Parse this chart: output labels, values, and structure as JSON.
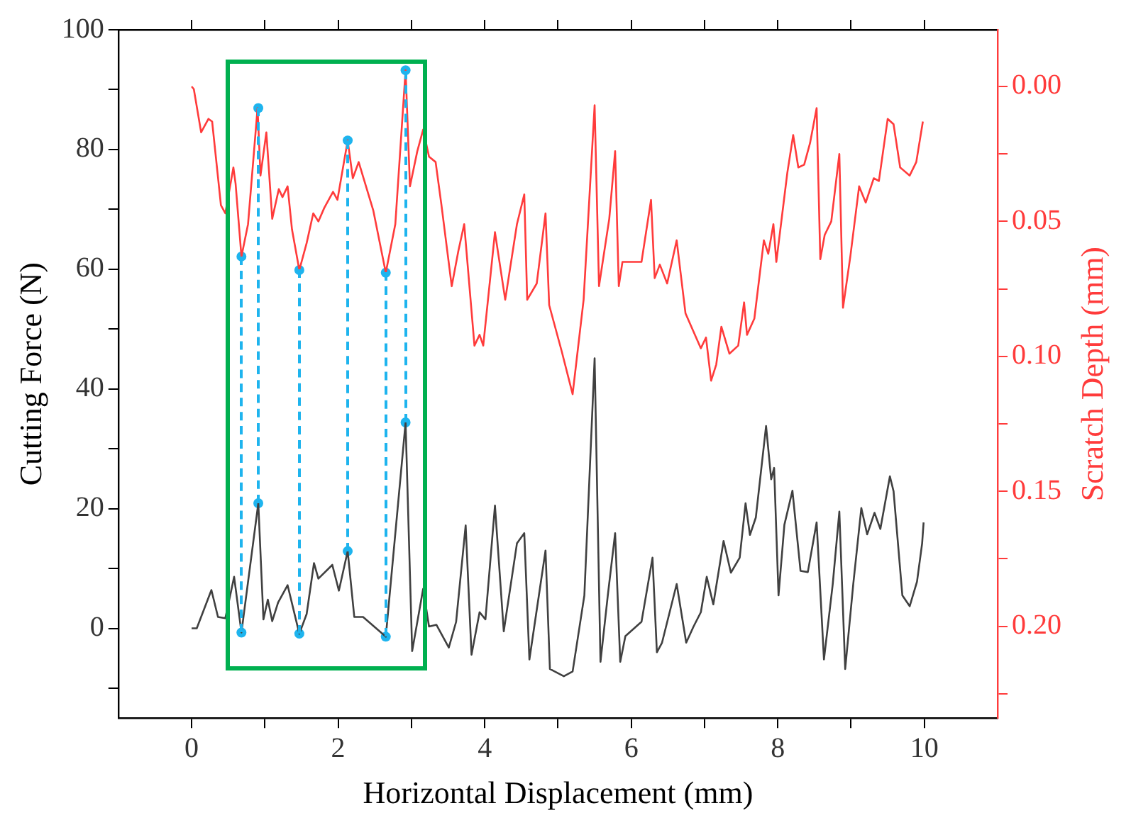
{
  "chart_data": {
    "type": "line",
    "xlabel": "Horizontal Displacement (mm)",
    "ylabel": "Cutting Force (N)",
    "y2label": "Scratch Depth (mm)",
    "xlim": [
      -1,
      11
    ],
    "xticks": [
      0,
      {
        "value": 1,
        "label": null
      },
      2,
      {
        "value": 3,
        "label": null
      },
      4,
      {
        "value": 5,
        "label": null
      },
      6,
      {
        "value": 7,
        "label": null
      },
      8,
      {
        "value": 9,
        "label": null
      },
      10
    ],
    "ylim": [
      -15,
      100
    ],
    "yticks": [
      {
        "value": -10,
        "label": null
      },
      0,
      {
        "value": 10,
        "label": null
      },
      20,
      {
        "value": 30,
        "label": null
      },
      40,
      {
        "value": 50,
        "label": null
      },
      60,
      {
        "value": 70,
        "label": null
      },
      80,
      {
        "value": 90,
        "label": null
      },
      100
    ],
    "y2lim": [
      0.234,
      -0.021
    ],
    "y2ticks": [
      {
        "value": 0,
        "label": "0.00"
      },
      {
        "value": 0.025,
        "label": null
      },
      {
        "value": 0.05,
        "label": "0.05"
      },
      {
        "value": 0.075,
        "label": null
      },
      {
        "value": 0.1,
        "label": "0.10"
      },
      {
        "value": 0.125,
        "label": null
      },
      {
        "value": 0.15,
        "label": "0.15"
      },
      {
        "value": 0.175,
        "label": null
      },
      {
        "value": 0.2,
        "label": "0.20"
      },
      {
        "value": 0.225,
        "label": null
      }
    ],
    "grid": false,
    "legend": false,
    "series": [
      {
        "color": "#404040",
        "marker": "none",
        "x": [
          0,
          0.07,
          0.27,
          0.36,
          0.46,
          0.58,
          0.68,
          0.91,
          0.98,
          1.04,
          1.1,
          1.18,
          1.31,
          1.47,
          1.57,
          1.67,
          1.73,
          1.92,
          2.01,
          2.13,
          2.22,
          2.34,
          2.65,
          2.92,
          3.01,
          3.16,
          3.24,
          3.34,
          3.51,
          3.61,
          3.74,
          3.82,
          3.93,
          4.01,
          4.14,
          4.26,
          4.44,
          4.54,
          4.61,
          4.83,
          4.89,
          5.08,
          5.2,
          5.36,
          5.5,
          5.58,
          5.68,
          5.78,
          5.85,
          5.92,
          6.14,
          6.29,
          6.35,
          6.42,
          6.62,
          6.75,
          6.85,
          6.95,
          7.03,
          7.12,
          7.26,
          7.36,
          7.48,
          7.56,
          7.62,
          7.7,
          7.84,
          7.91,
          7.95,
          8.01,
          8.09,
          8.2,
          8.31,
          8.41,
          8.53,
          8.63,
          8.75,
          8.84,
          8.92,
          9.03,
          9.14,
          9.22,
          9.32,
          9.4,
          9.53,
          9.58,
          9.7,
          9.8,
          9.9,
          9.97,
          9.99
        ],
        "values": [
          0,
          0,
          6.4,
          1.9,
          1.7,
          8.6,
          -0.7,
          20.9,
          1.5,
          4.8,
          1.2,
          4.3,
          7.2,
          -0.9,
          2.4,
          10.9,
          8.3,
          10.6,
          6.3,
          12.9,
          1.9,
          1.9,
          -1.4,
          34.4,
          -3.8,
          6.6,
          0.3,
          0.6,
          -3.2,
          1.1,
          17.2,
          -4.4,
          2.7,
          1.5,
          20.5,
          -0.5,
          14.2,
          15.9,
          -5.2,
          13,
          -6.8,
          -8,
          -7.2,
          5.5,
          45.1,
          -5.6,
          5.5,
          15.9,
          -5.6,
          -1.3,
          1.1,
          11.8,
          -4,
          -2.4,
          7.4,
          -2.4,
          0.3,
          2.7,
          8.6,
          4,
          14.6,
          9.3,
          11.8,
          20.9,
          15.6,
          18.5,
          33.8,
          24.9,
          26.8,
          5.5,
          17.3,
          23,
          9.6,
          9.4,
          17.7,
          -5.2,
          7.4,
          19.5,
          -6.8,
          7.4,
          20.1,
          15.7,
          19.3,
          16.6,
          25.4,
          22.9,
          5.5,
          3.7,
          7.8,
          14.2,
          17.7
        ]
      },
      {
        "axis": "y2",
        "color": "#ff3b3b",
        "marker": "none",
        "x": [
          0,
          0.03,
          0.13,
          0.23,
          0.28,
          0.4,
          0.46,
          0.57,
          0.6,
          0.68,
          0.77,
          0.9,
          0.94,
          1.02,
          1.1,
          1.19,
          1.24,
          1.31,
          1.37,
          1.47,
          1.57,
          1.66,
          1.73,
          1.81,
          1.93,
          1.99,
          2.13,
          2.2,
          2.28,
          2.48,
          2.65,
          2.78,
          2.92,
          2.98,
          3.08,
          3.16,
          3.24,
          3.33,
          3.41,
          3.55,
          3.64,
          3.72,
          3.86,
          3.93,
          3.98,
          4.14,
          4.28,
          4.44,
          4.54,
          4.58,
          4.71,
          4.83,
          4.88,
          5.05,
          5.2,
          5.35,
          5.5,
          5.56,
          5.7,
          5.78,
          5.83,
          5.88,
          6.14,
          6.27,
          6.32,
          6.39,
          6.49,
          6.62,
          6.74,
          6.95,
          7.02,
          7.09,
          7.16,
          7.23,
          7.34,
          7.46,
          7.54,
          7.58,
          7.68,
          7.81,
          7.87,
          7.94,
          7.98,
          8.08,
          8.13,
          8.21,
          8.28,
          8.36,
          8.44,
          8.53,
          8.58,
          8.64,
          8.73,
          8.84,
          8.89,
          8.99,
          9.11,
          9.2,
          9.31,
          9.38,
          9.5,
          9.58,
          9.67,
          9.8,
          9.89,
          9.98
        ],
        "values": [
          0,
          0.001,
          0.017,
          0.012,
          0.013,
          0.044,
          0.047,
          0.03,
          0.036,
          0.063,
          0.051,
          0.008,
          0.033,
          0.017,
          0.049,
          0.038,
          0.041,
          0.037,
          0.053,
          0.068,
          0.058,
          0.047,
          0.05,
          0.045,
          0.039,
          0.042,
          0.02,
          0.034,
          0.028,
          0.046,
          0.069,
          0.051,
          -0.006,
          0.037,
          0.024,
          0.016,
          0.026,
          0.028,
          0.044,
          0.074,
          0.061,
          0.051,
          0.096,
          0.092,
          0.096,
          0.054,
          0.079,
          0.051,
          0.04,
          0.079,
          0.073,
          0.047,
          0.081,
          0.098,
          0.114,
          0.079,
          0.007,
          0.074,
          0.049,
          0.024,
          0.074,
          0.065,
          0.065,
          0.042,
          0.071,
          0.066,
          0.073,
          0.057,
          0.084,
          0.097,
          0.093,
          0.109,
          0.103,
          0.089,
          0.099,
          0.096,
          0.08,
          0.092,
          0.086,
          0.057,
          0.062,
          0.051,
          0.065,
          0.043,
          0.032,
          0.018,
          0.03,
          0.029,
          0.021,
          0.008,
          0.064,
          0.055,
          0.05,
          0.025,
          0.082,
          0.063,
          0.037,
          0.043,
          0.034,
          0.035,
          0.012,
          0.014,
          0.03,
          0.033,
          0.028,
          0.013
        ]
      },
      {
        "type": "scatter",
        "color": "#1eb4ee",
        "marker": "circle",
        "x": [
          0.68,
          0.91,
          1.47,
          2.13,
          2.65,
          2.92
        ],
        "values": [
          -0.7,
          20.9,
          -0.9,
          12.9,
          -1.4,
          34.4
        ]
      },
      {
        "type": "scatter",
        "axis": "y2",
        "color": "#1eb4ee",
        "marker": "circle",
        "x": [
          0.68,
          0.91,
          1.47,
          2.13,
          2.65,
          2.92
        ],
        "values": [
          0.063,
          0.008,
          0.068,
          0.02,
          0.069,
          -0.006
        ]
      }
    ]
  }
}
